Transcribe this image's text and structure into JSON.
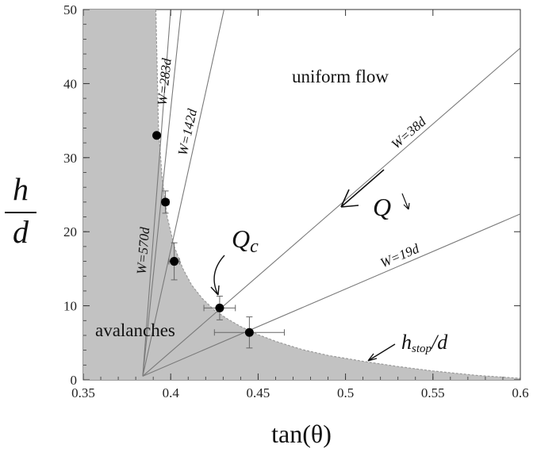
{
  "chart_data": {
    "type": "scatter",
    "title": "",
    "xlabel": "tan(θ)",
    "ylabel_num": "h",
    "ylabel_den": "d",
    "xlim": [
      0.35,
      0.6
    ],
    "ylim": [
      0,
      50
    ],
    "xticks": [
      "0.35",
      "0.4",
      "0.45",
      "0.5",
      "0.55",
      "0.6"
    ],
    "yticks": [
      "0",
      "10",
      "20",
      "30",
      "40",
      "50"
    ],
    "hstop_curve": {
      "x": [
        0.3915,
        0.393,
        0.395,
        0.398,
        0.402,
        0.407,
        0.412,
        0.418,
        0.425,
        0.432,
        0.44,
        0.45,
        0.46,
        0.475,
        0.49,
        0.51,
        0.53,
        0.55,
        0.575,
        0.6
      ],
      "y": [
        50,
        34,
        27.5,
        22,
        18,
        15,
        12.8,
        11,
        9.4,
        8.3,
        7.2,
        6.1,
        5.2,
        4.1,
        3.3,
        2.5,
        1.8,
        1.2,
        0.6,
        0.2
      ]
    },
    "points": [
      {
        "x": 0.392,
        "y": 33,
        "xerr": 0,
        "yerr": 0
      },
      {
        "x": 0.397,
        "y": 24,
        "xerr": 0.002,
        "yerr": 1.5
      },
      {
        "x": 0.402,
        "y": 16,
        "xerr": 0.003,
        "yerr": 2.5
      },
      {
        "x": 0.428,
        "y": 9.7,
        "xerr": 0.009,
        "yerr": 1.6
      },
      {
        "x": 0.445,
        "y": 6.4,
        "xerr": 0.02,
        "yerr": 2.1
      }
    ],
    "width_lines": [
      {
        "label": "W=570d",
        "x0": 0.384,
        "y0": 0.5,
        "x1": 0.4,
        "y1": 50
      },
      {
        "label": "W=283d",
        "x0": 0.384,
        "y0": 0.5,
        "x1": 0.406,
        "y1": 50
      },
      {
        "label": "W=142d",
        "x0": 0.384,
        "y0": 0.5,
        "x1": 0.4305,
        "y1": 50
      },
      {
        "label": "W=38d",
        "x0": 0.384,
        "y0": 0.5,
        "x1": 0.6,
        "y1": 44.8
      },
      {
        "label": "W=19d",
        "x0": 0.384,
        "y0": 0.5,
        "x1": 0.6,
        "y1": 22.4
      }
    ],
    "annotations": {
      "uniform": "uniform flow",
      "avalanches": "avalanches",
      "q": "Q",
      "qc_main": "Q",
      "qc_sub": "c",
      "hstop_main": "h",
      "hstop_sub": "stop",
      "hstop_den": "/d"
    }
  },
  "colors": {
    "avalanche_region": "#c2c2c2",
    "lines": "#7a7a7a",
    "markers": "#000000"
  }
}
